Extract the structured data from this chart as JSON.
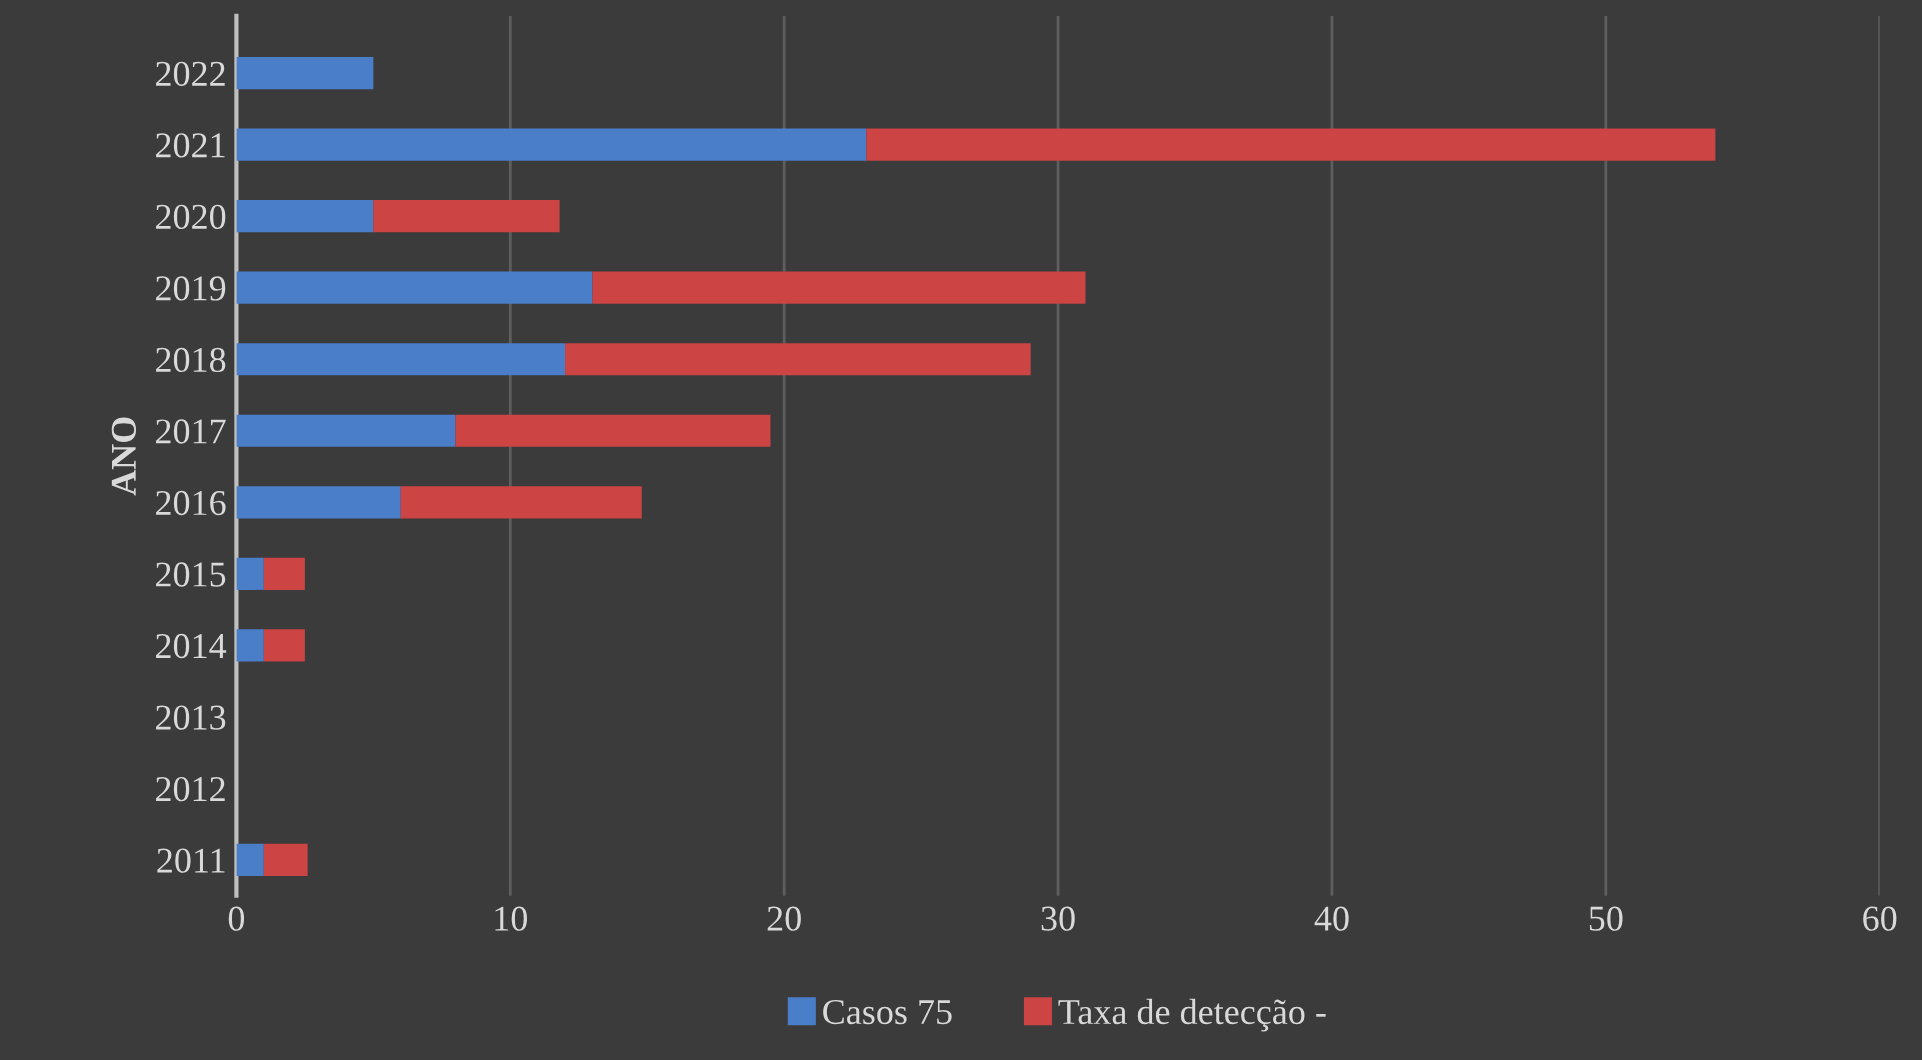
{
  "chart_data": {
    "type": "bar",
    "orientation": "horizontal",
    "stacked": true,
    "ylabel": "ANO",
    "categories": [
      "2022",
      "2021",
      "2020",
      "2019",
      "2018",
      "2017",
      "2016",
      "2015",
      "2014",
      "2013",
      "2012",
      "2011"
    ],
    "series": [
      {
        "name": "Casos 75",
        "color": "#4a7ec9",
        "values": [
          5,
          23,
          5,
          13,
          12,
          8,
          6,
          1,
          1,
          0,
          0,
          1
        ]
      },
      {
        "name": "Taxa de detecção -",
        "color": "#cc4444",
        "values": [
          0,
          31,
          6.8,
          18,
          17,
          11.5,
          8.8,
          1.5,
          1.5,
          0,
          0,
          1.6
        ]
      }
    ],
    "xlim": [
      0,
      60
    ],
    "xticks": [
      0,
      10,
      20,
      30,
      40,
      50,
      60
    ],
    "grid": "x",
    "legend": "bottom"
  }
}
